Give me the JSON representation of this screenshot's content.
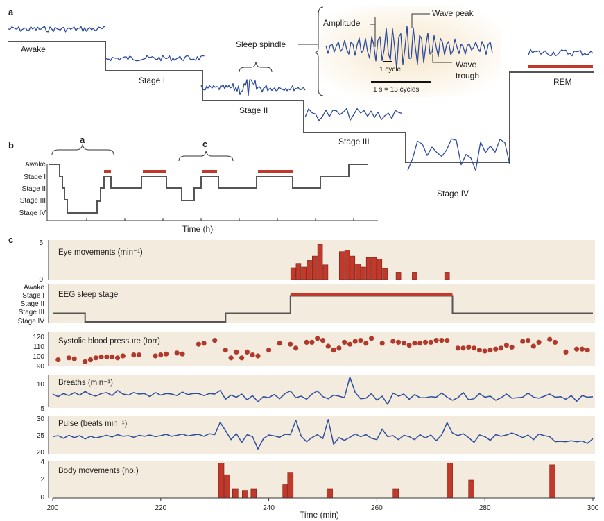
{
  "panel_labels": {
    "a": "a",
    "b": "b",
    "c": "c"
  },
  "panel_a": {
    "stages": [
      "Awake",
      "Stage I",
      "Stage II",
      "Stage III",
      "Stage IV",
      "REM"
    ],
    "spindle_label": "Sleep spindle",
    "inset": {
      "amplitude": "Amplitude",
      "wave_peak": "Wave peak",
      "wave_trough_1": "Wave",
      "wave_trough_2": "trough",
      "one_cycle": "1 cycle",
      "scale": "1 s = 13 cycles"
    }
  },
  "panel_b": {
    "stages": [
      "Awake",
      "Stage I",
      "Stage II",
      "Stage III",
      "Stage IV"
    ],
    "brace_a": "a",
    "brace_c": "c",
    "xlabel": "Time (h)"
  },
  "panel_c": {
    "xlabel": "Time (min)",
    "xticks": [
      "200",
      "220",
      "240",
      "260",
      "280",
      "300"
    ],
    "colors": {
      "bar": "#c0392b",
      "line": "#2d4d9f",
      "rem": "#c0392b",
      "panel_bg": "#f3ebdd"
    }
  },
  "chart_data": [
    {
      "type": "bar",
      "title": "Eye movements (min⁻¹)",
      "ylim": [
        0,
        5
      ],
      "yticks": [
        "5",
        "0"
      ],
      "x": [
        244.5,
        245.5,
        246.5,
        247.5,
        248.5,
        249.5,
        250.5,
        253.5,
        254.5,
        255.5,
        256.5,
        257.5,
        258.5,
        259.5,
        260.5,
        261.5,
        264,
        267,
        273
      ],
      "values": [
        1.6,
        2.2,
        1.7,
        2.6,
        3.2,
        4.8,
        2.0,
        3.8,
        4.0,
        3.2,
        2.1,
        1.7,
        3.0,
        3.0,
        2.8,
        1.5,
        1.0,
        1.0,
        1.0
      ]
    },
    {
      "type": "line",
      "title": "EEG sleep stage",
      "yticks": [
        "Awake",
        "Stage I",
        "Stage II",
        "Stage III",
        "Stage IV"
      ],
      "x": [
        200,
        206,
        206,
        232,
        232,
        244,
        244,
        274,
        274,
        300
      ],
      "stage": [
        3,
        3,
        4,
        4,
        3,
        3,
        1,
        1,
        3,
        3
      ],
      "rem": [
        244,
        274
      ]
    },
    {
      "type": "scatter",
      "title": "Systolic blood pressure (torr)",
      "ylim": [
        90,
        125
      ],
      "yticks": [
        "120",
        "110",
        "100",
        "90"
      ],
      "x": [
        201,
        203,
        204,
        206,
        207,
        208,
        209,
        210,
        211,
        212,
        213,
        215,
        216,
        219,
        220,
        221,
        223,
        224,
        227,
        228,
        230,
        232,
        233,
        234,
        235,
        236,
        237,
        238,
        240,
        242,
        244,
        245,
        247,
        248,
        249,
        250,
        251,
        252,
        253,
        254,
        255,
        256,
        257,
        258,
        259,
        261,
        263,
        264,
        265,
        266,
        267,
        268,
        269,
        270,
        271,
        272,
        273,
        275,
        276,
        277,
        278,
        279,
        280,
        281,
        282,
        283,
        284,
        285,
        287,
        288,
        289,
        290,
        292,
        293,
        295,
        297,
        298,
        299
      ],
      "values": [
        96,
        98,
        97,
        94,
        96,
        98,
        99,
        99,
        99,
        98,
        100,
        101,
        101,
        100,
        101,
        102,
        103,
        102,
        112,
        113,
        116,
        106,
        98,
        104,
        98,
        104,
        101,
        100,
        106,
        113,
        112,
        108,
        114,
        114,
        118,
        116,
        110,
        106,
        108,
        114,
        112,
        115,
        116,
        113,
        118,
        113,
        115,
        114,
        113,
        111,
        113,
        113,
        114,
        114,
        116,
        116,
        116,
        108,
        108,
        109,
        108,
        106,
        105,
        106,
        107,
        108,
        111,
        109,
        115,
        116,
        110,
        114,
        117,
        114,
        104,
        107,
        107,
        106
      ]
    },
    {
      "type": "line",
      "title": "Breaths (min⁻¹)",
      "ylim": [
        4,
        11
      ],
      "yticks": [
        "10",
        "5"
      ],
      "x": [
        200,
        201,
        202,
        203,
        204,
        205,
        206,
        207,
        208,
        209,
        210,
        211,
        212,
        213,
        214,
        215,
        216,
        217,
        218,
        219,
        220,
        221,
        222,
        223,
        224,
        225,
        226,
        227,
        228,
        229,
        230,
        231,
        232,
        233,
        234,
        235,
        236,
        237,
        238,
        239,
        240,
        241,
        242,
        243,
        244,
        245,
        246,
        247,
        248,
        249,
        250,
        251,
        252,
        253,
        254,
        255,
        256,
        257,
        258,
        259,
        260,
        261,
        262,
        263,
        264,
        265,
        266,
        267,
        268,
        269,
        270,
        271,
        272,
        273,
        274,
        275,
        276,
        277,
        278,
        279,
        280,
        281,
        282,
        283,
        284,
        285,
        286,
        287,
        288,
        289,
        290,
        291,
        292,
        293,
        294,
        295,
        296,
        297,
        298,
        299,
        300
      ],
      "values": [
        7.5,
        7.0,
        7.6,
        7.2,
        7.8,
        7.3,
        8.0,
        7.4,
        7.1,
        7.6,
        7.8,
        7.2,
        8.2,
        7.5,
        7.3,
        7.8,
        7.5,
        7.6,
        7.0,
        7.8,
        7.3,
        7.6,
        7.5,
        7.2,
        7.9,
        7.4,
        7.6,
        7.6,
        7.2,
        7.6,
        7.5,
        8.2,
        6.5,
        7.3,
        6.9,
        7.5,
        6.4,
        7.2,
        6.0,
        7.0,
        6.8,
        7.4,
        6.6,
        7.6,
        8.1,
        6.8,
        7.1,
        6.5,
        7.5,
        8.1,
        7.0,
        6.6,
        7.3,
        7.1,
        6.8,
        10.8,
        7.8,
        6.6,
        6.7,
        7.6,
        6.3,
        7.1,
        5.5,
        7.7,
        7.1,
        7.5,
        6.5,
        7.4,
        6.8,
        6.8,
        7.0,
        6.9,
        7.7,
        6.9,
        6.3,
        6.8,
        7.8,
        6.4,
        6.6,
        7.6,
        6.9,
        7.1,
        6.3,
        6.8,
        7.5,
        6.7,
        6.8,
        6.9,
        7.7,
        6.9,
        6.7,
        7.1,
        7.5,
        6.9,
        7.0,
        6.5,
        7.2,
        6.1,
        7.2,
        6.9,
        7.0
      ]
    },
    {
      "type": "line",
      "title": "Pulse (beats min⁻¹)",
      "ylim": [
        20,
        30
      ],
      "yticks": [
        "30",
        "25",
        "20"
      ],
      "x": [
        200,
        201,
        202,
        203,
        204,
        205,
        206,
        207,
        208,
        209,
        210,
        211,
        212,
        213,
        214,
        215,
        216,
        217,
        218,
        219,
        220,
        221,
        222,
        223,
        224,
        225,
        226,
        227,
        228,
        229,
        230,
        231,
        232,
        233,
        234,
        235,
        236,
        237,
        238,
        239,
        240,
        241,
        242,
        243,
        244,
        245,
        246,
        247,
        248,
        249,
        250,
        251,
        252,
        253,
        254,
        255,
        256,
        257,
        258,
        259,
        260,
        261,
        262,
        263,
        264,
        265,
        266,
        267,
        268,
        269,
        270,
        271,
        272,
        273,
        274,
        275,
        276,
        277,
        278,
        279,
        280,
        281,
        282,
        283,
        284,
        285,
        286,
        287,
        288,
        289,
        290,
        291,
        292,
        293,
        294,
        295,
        296,
        297,
        298,
        299,
        300
      ],
      "values": [
        24.5,
        24.8,
        24.0,
        24.9,
        24.2,
        24.8,
        23.8,
        24.6,
        24.1,
        24.5,
        24.9,
        24.4,
        25.1,
        24.6,
        24.8,
        24.3,
        24.9,
        24.6,
        25.0,
        24.5,
        24.8,
        25.2,
        24.6,
        24.9,
        25.3,
        24.7,
        25.0,
        25.2,
        24.6,
        25.4,
        25.1,
        28.8,
        26.3,
        23.6,
        25.4,
        22.8,
        25.1,
        24.5,
        20.8,
        23.9,
        25.0,
        24.7,
        24.3,
        25.2,
        25.1,
        29.4,
        24.6,
        23.0,
        24.2,
        25.1,
        23.9,
        29.6,
        22.2,
        24.2,
        23.4,
        24.3,
        25.3,
        24.5,
        25.1,
        24.0,
        23.6,
        26.8,
        24.5,
        24.8,
        23.6,
        24.9,
        24.5,
        23.6,
        25.1,
        24.1,
        25.0,
        23.3,
        25.0,
        28.7,
        25.6,
        24.8,
        25.4,
        24.2,
        22.8,
        25.0,
        24.5,
        23.4,
        25.1,
        24.6,
        25.0,
        25.6,
        25.0,
        24.2,
        25.0,
        23.6,
        25.3,
        24.8,
        24.5,
        23.0,
        23.1,
        23.0,
        23.3,
        23.0,
        23.2,
        22.5,
        23.9
      ]
    },
    {
      "type": "bar",
      "title": "Body movements (no.)",
      "ylim": [
        0,
        4
      ],
      "yticks": [
        "4",
        "2",
        "0"
      ],
      "x": [
        231.2,
        232.3,
        233.8,
        235.6,
        237.2,
        243.1,
        244.0,
        251.3,
        263.5,
        273.5,
        277.5,
        292.5
      ],
      "values": [
        3.9,
        2.6,
        1.0,
        0.8,
        1.0,
        1.5,
        2.8,
        1.0,
        1.0,
        3.9,
        2.0,
        3.7
      ]
    }
  ]
}
